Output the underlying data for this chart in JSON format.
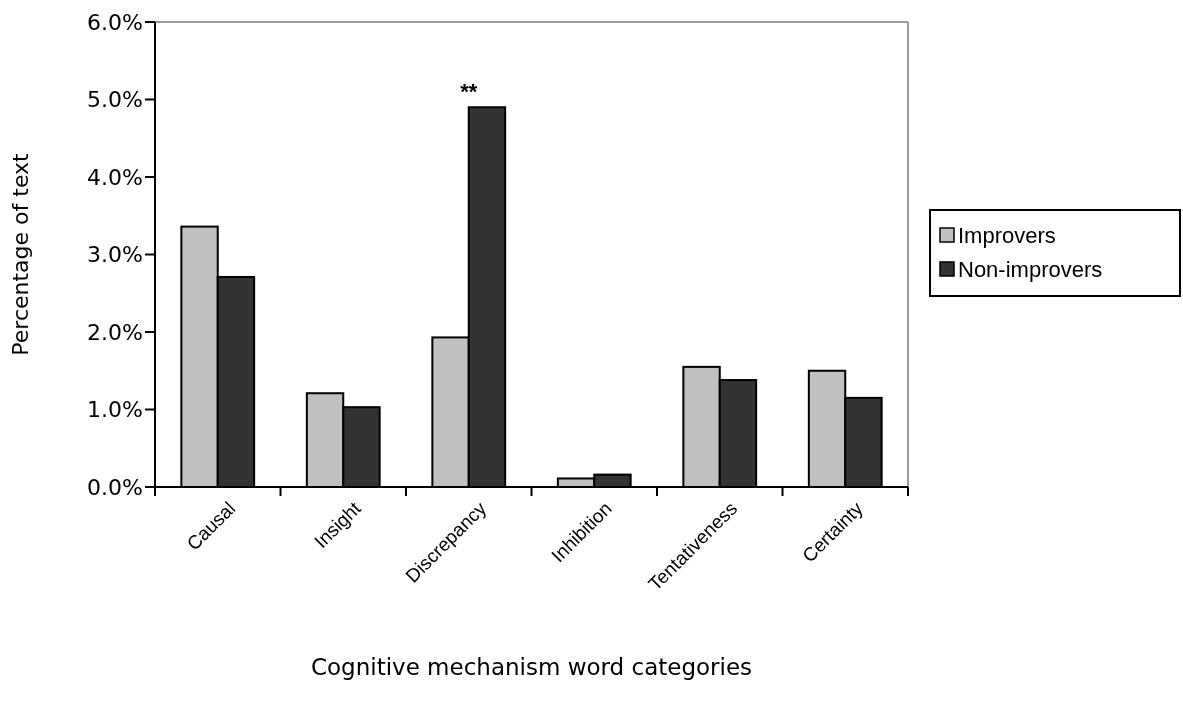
{
  "chart_data": {
    "type": "bar",
    "xlabel": "Cognitive mechanism word categories",
    "ylabel": "Percentage of text",
    "categories": [
      "Causal",
      "Insight",
      "Discrepancy",
      "Inhibition",
      "Tentativeness",
      "Certainty"
    ],
    "series": [
      {
        "name": "Improvers",
        "color": "#c0c0c0",
        "values": [
          3.36,
          1.21,
          1.93,
          0.11,
          1.55,
          1.5
        ]
      },
      {
        "name": "Non-improvers",
        "color": "#333333",
        "values": [
          2.71,
          1.03,
          4.9,
          0.16,
          1.38,
          1.15
        ]
      }
    ],
    "ylim": [
      0,
      6
    ],
    "yticks": [
      {
        "value": 0,
        "label": "0.0%"
      },
      {
        "value": 1,
        "label": "1.0%"
      },
      {
        "value": 2,
        "label": "2.0%"
      },
      {
        "value": 3,
        "label": "3.0%"
      },
      {
        "value": 4,
        "label": "4.0%"
      },
      {
        "value": 5,
        "label": "5.0%"
      },
      {
        "value": 6,
        "label": "6.0%"
      }
    ],
    "annotations": [
      {
        "text": "**",
        "x": "Discrepancy",
        "y": 4.9
      }
    ],
    "legend": "right",
    "grid": false
  }
}
